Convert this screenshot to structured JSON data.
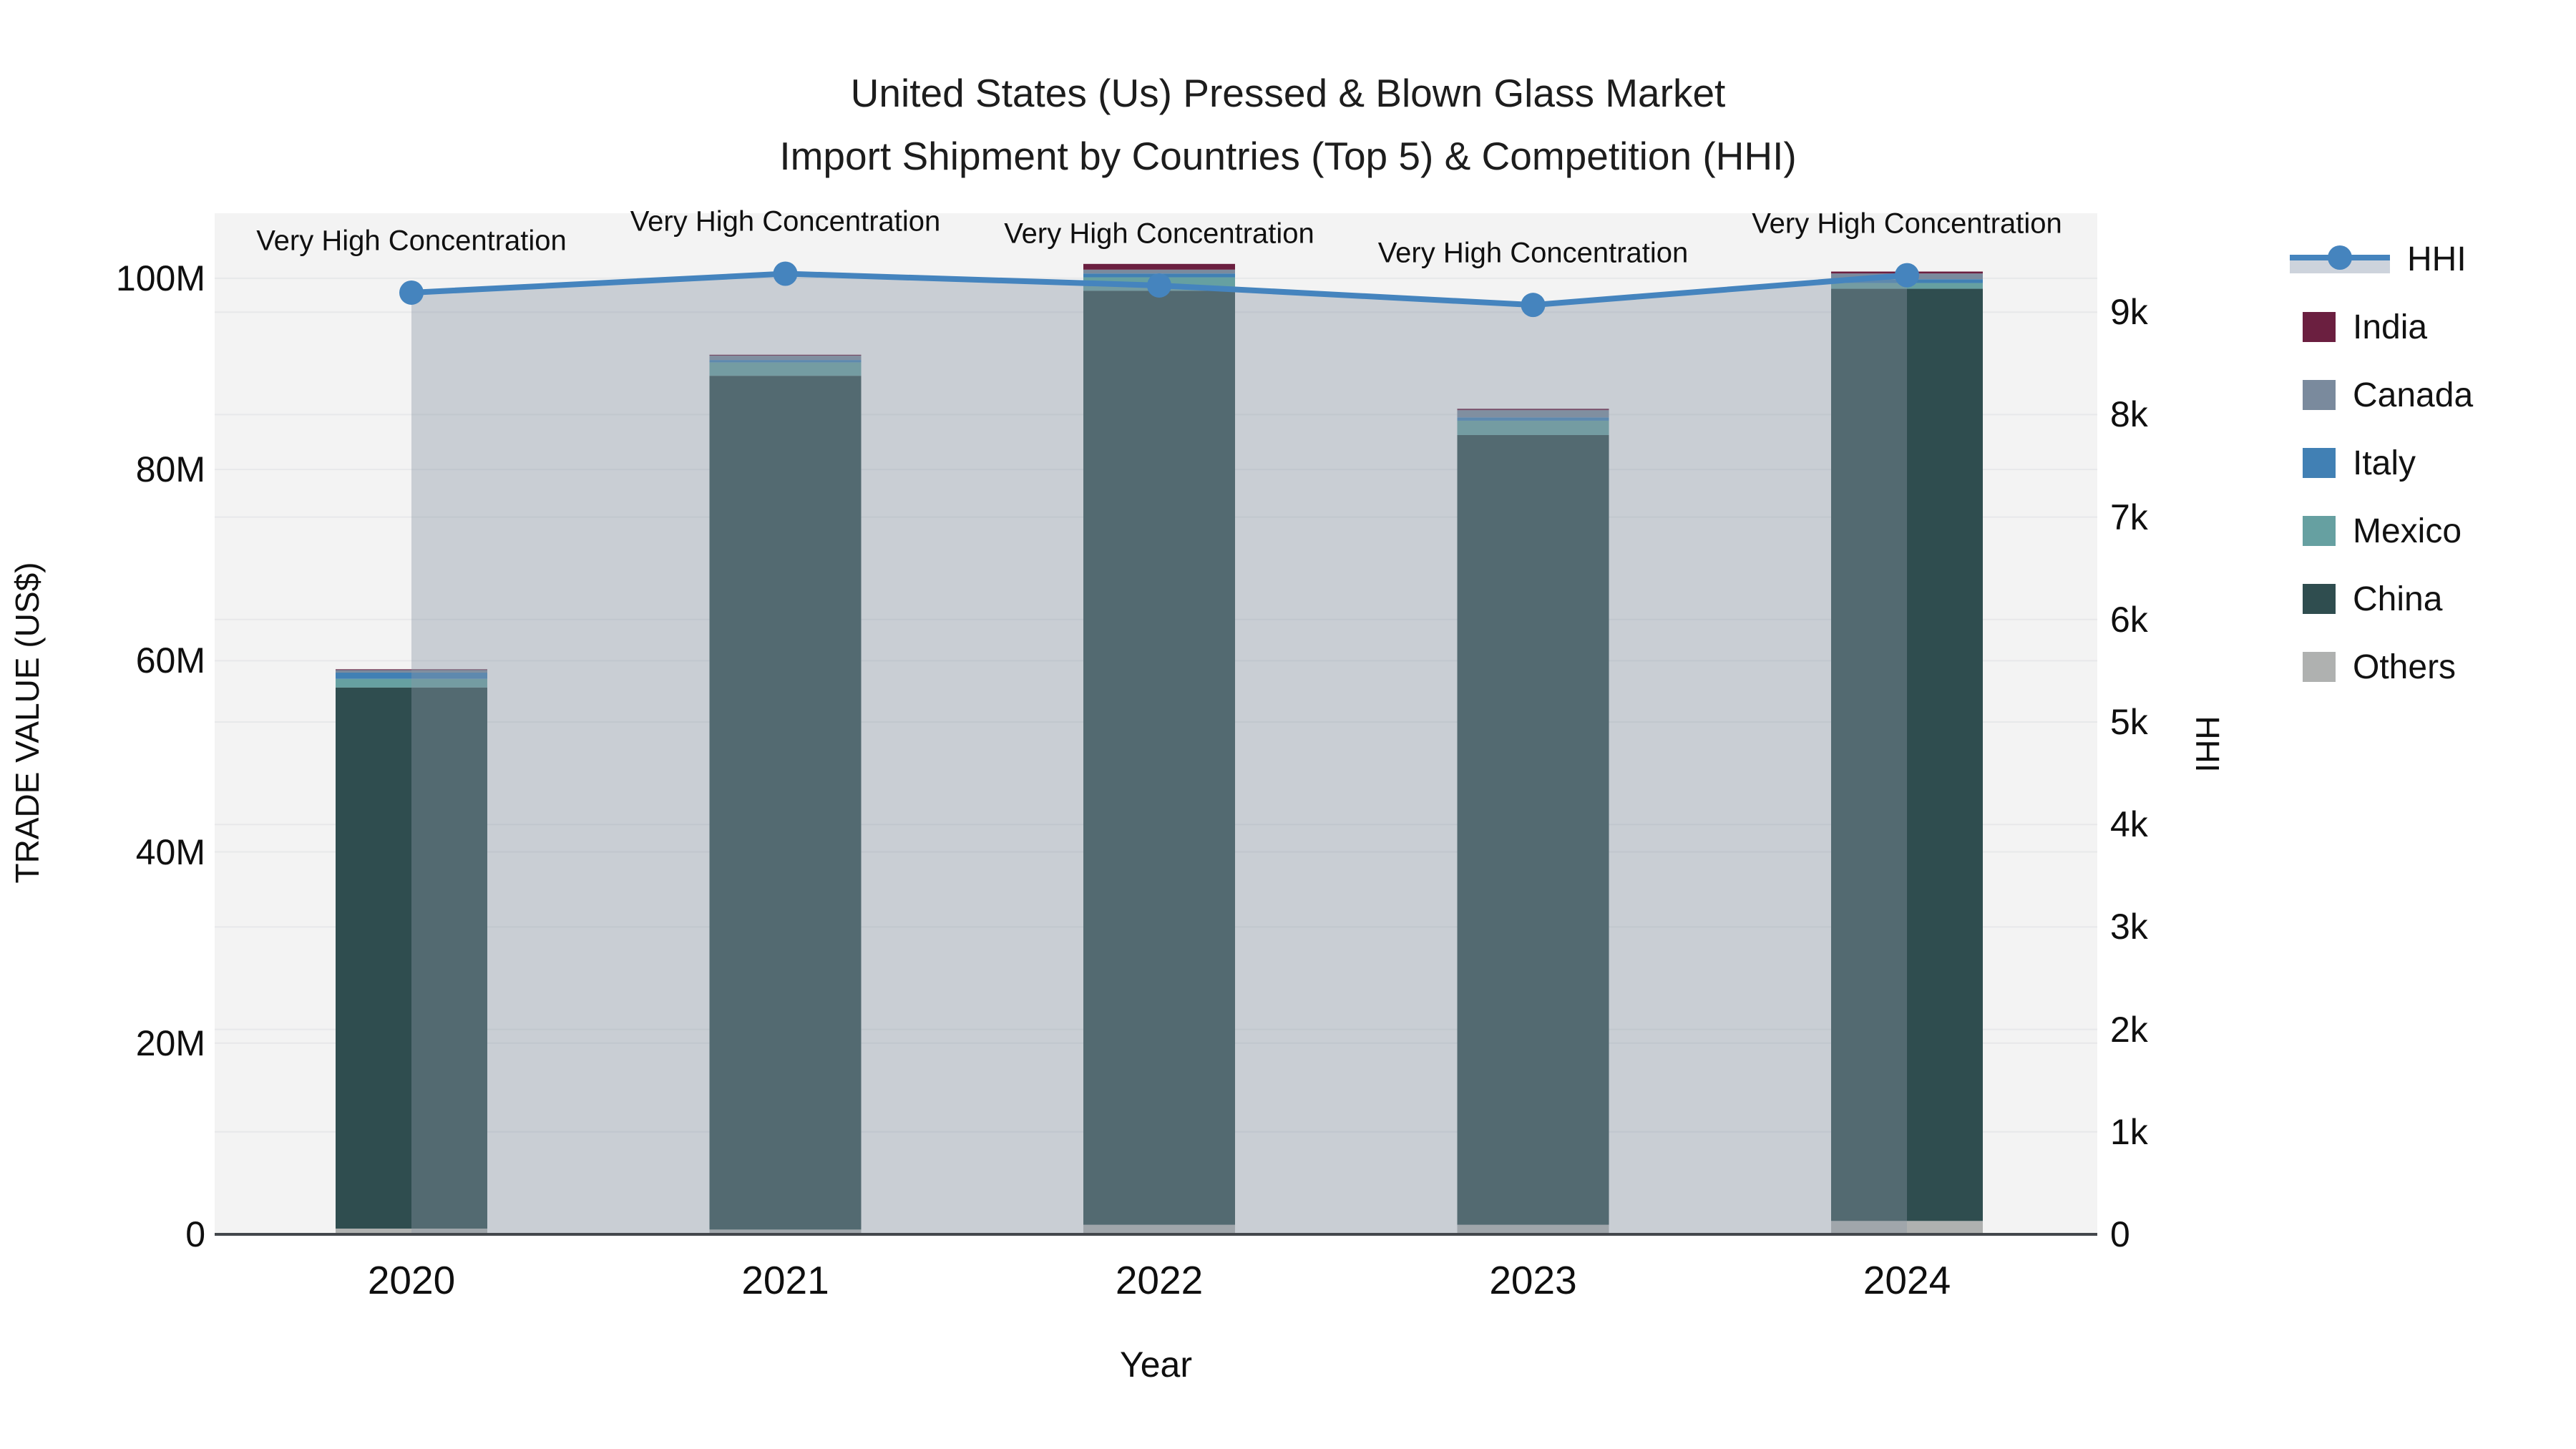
{
  "figure": {
    "title_line1": "United States (Us) Pressed & Blown Glass Market",
    "title_line2": "Import Shipment by Countries (Top 5) & Competition (HHI)"
  },
  "chart_data": {
    "type": "combo_stacked_bar_line",
    "title": "United States (Us) Pressed & Blown Glass Market Import Shipment by Countries (Top 5) & Competition (HHI)",
    "categories": [
      "2020",
      "2021",
      "2022",
      "2023",
      "2024"
    ],
    "bar_unit": "million US$",
    "bar_stack_order_note": "bottom to top",
    "bar_series": [
      {
        "name": "Others",
        "color": "#AFB1B0",
        "values": [
          0.6,
          0.5,
          1.0,
          1.0,
          1.4
        ]
      },
      {
        "name": "China",
        "color": "#2F4D4F",
        "values": [
          56.6,
          89.3,
          97.7,
          82.6,
          97.5
        ]
      },
      {
        "name": "Mexico",
        "color": "#66A0A1",
        "values": [
          0.9,
          1.4,
          1.4,
          1.5,
          0.6
        ]
      },
      {
        "name": "Italy",
        "color": "#4180B4",
        "values": [
          0.65,
          0.25,
          0.4,
          0.35,
          0.4
        ]
      },
      {
        "name": "Canada",
        "color": "#7A8A9D",
        "values": [
          0.3,
          0.45,
          0.4,
          0.75,
          0.6
        ]
      },
      {
        "name": "India",
        "color": "#6B1F40",
        "values": [
          0.05,
          0.1,
          0.6,
          0.15,
          0.2
        ]
      }
    ],
    "bar_totals": [
      59.1,
      92.0,
      101.5,
      86.35,
      100.7
    ],
    "line_series": {
      "name": "HHI",
      "color": "#4584BE",
      "area_fill_color": "rgba(137,150,166,0.40)",
      "values": [
        9190,
        9375,
        9260,
        9070,
        9360
      ]
    },
    "annotations": [
      {
        "category": "2020",
        "text": "Very High Concentration"
      },
      {
        "category": "2021",
        "text": "Very High Concentration"
      },
      {
        "category": "2022",
        "text": "Very High Concentration"
      },
      {
        "category": "2023",
        "text": "Very High Concentration"
      },
      {
        "category": "2024",
        "text": "Very High Concentration"
      }
    ],
    "x_axis": {
      "title": "Year",
      "tick_labels": [
        "2020",
        "2021",
        "2022",
        "2023",
        "2024"
      ]
    },
    "y_left_axis": {
      "title": "TRADE VALUE (US$)",
      "tick_labels": [
        "0",
        "20M",
        "40M",
        "60M",
        "80M",
        "100M"
      ],
      "tick_values": [
        0,
        20,
        40,
        60,
        80,
        100
      ],
      "range": [
        0,
        106.8
      ],
      "gridlines": true
    },
    "y_right_axis": {
      "title": "HHI",
      "tick_labels": [
        "0",
        "1k",
        "2k",
        "3k",
        "4k",
        "5k",
        "6k",
        "7k",
        "8k",
        "9k"
      ],
      "tick_values": [
        0,
        1000,
        2000,
        3000,
        4000,
        5000,
        6000,
        7000,
        8000,
        9000
      ],
      "range": [
        0,
        9965
      ],
      "gridlines": true
    },
    "legend": {
      "position": "right",
      "entries": [
        {
          "label": "HHI",
          "type": "line",
          "color": "#4584BE"
        },
        {
          "label": "India",
          "type": "square",
          "color": "#6B1F40"
        },
        {
          "label": "Canada",
          "type": "square",
          "color": "#7A8A9D"
        },
        {
          "label": "Italy",
          "type": "square",
          "color": "#4180B4"
        },
        {
          "label": "Mexico",
          "type": "square",
          "color": "#66A0A1"
        },
        {
          "label": "China",
          "type": "square",
          "color": "#2F4D4F"
        },
        {
          "label": "Others",
          "type": "square",
          "color": "#AFB1B0"
        }
      ]
    },
    "colors": {
      "plot_background": "#f3f3f3",
      "gridline": "#e7e8ea",
      "axis_line": "#43474c"
    }
  }
}
